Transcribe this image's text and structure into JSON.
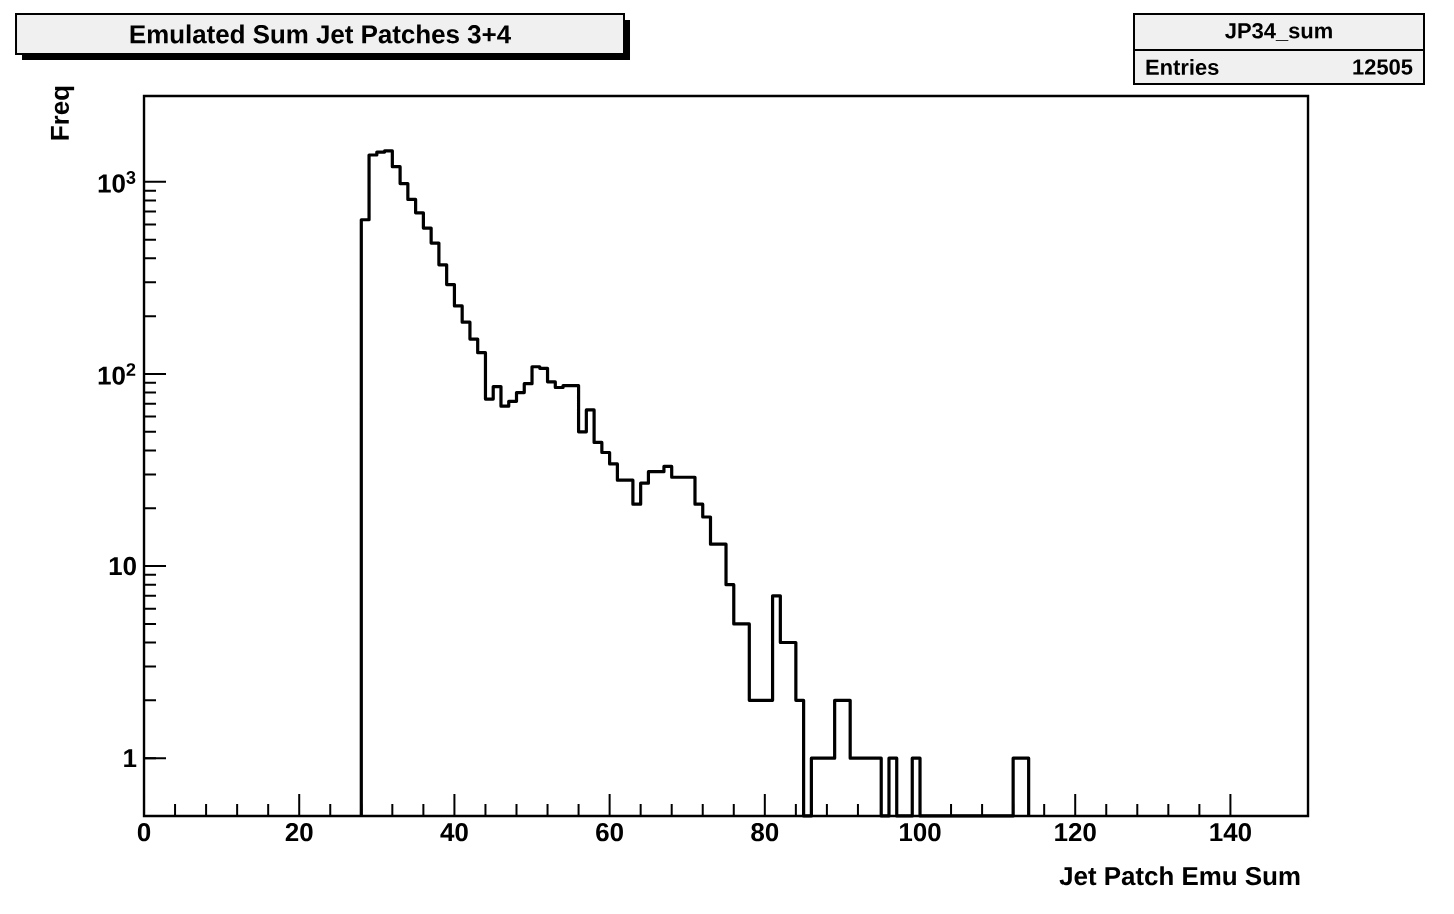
{
  "chart_data": {
    "type": "histogram",
    "title": "Emulated Sum Jet Patches 3+4",
    "xlabel": "Jet Patch Emu Sum",
    "ylabel": "Freq",
    "annotations": [
      "JP34_sum",
      "Entries",
      "12505"
    ],
    "bins": [
      28,
      29,
      30,
      31,
      32,
      33,
      34,
      35,
      36,
      37,
      38,
      39,
      40,
      41,
      42,
      43,
      44,
      45,
      46,
      47,
      48,
      49,
      50,
      51,
      52,
      53,
      54,
      55,
      56,
      57,
      58,
      59,
      60,
      61,
      62,
      63,
      64,
      65,
      66,
      67,
      68,
      69,
      70,
      71,
      72,
      73,
      74,
      75,
      76,
      77,
      78,
      79,
      80,
      81,
      82,
      83,
      84,
      85,
      86,
      87,
      88,
      89,
      90,
      91,
      92,
      93,
      94,
      95,
      96,
      97,
      98,
      99,
      100,
      101,
      102,
      103,
      104,
      105,
      106,
      107,
      108,
      109,
      110,
      111,
      112,
      113,
      114
    ],
    "values": [
      635,
      1380,
      1430,
      1450,
      1200,
      980,
      810,
      690,
      575,
      480,
      370,
      292,
      226,
      186,
      152,
      129,
      74,
      86,
      68,
      72,
      80,
      89,
      109,
      107,
      91,
      85,
      87,
      87,
      50,
      65,
      44,
      39,
      34,
      28,
      28,
      21,
      27,
      31,
      31,
      33,
      29,
      29,
      29,
      21,
      18,
      13,
      13,
      8,
      5,
      5,
      2,
      2,
      2,
      7,
      4,
      4,
      2,
      null,
      1,
      1,
      1,
      2,
      2,
      1,
      1,
      1,
      1,
      null,
      1,
      null,
      null,
      1,
      null,
      null,
      null,
      null,
      null,
      null,
      null,
      null,
      null,
      null,
      null,
      null,
      1,
      1
    ],
    "color": "#000000",
    "log": "y",
    "grid": false,
    "xlim": [
      0,
      150
    ],
    "ylim": [
      0.5,
      2800
    ],
    "xticks": [
      0,
      20,
      40,
      60,
      80,
      100,
      120,
      140
    ],
    "yticks": [
      1,
      10,
      {
        "value": 100,
        "label": "10$^{2}$"
      },
      {
        "value": 1000,
        "label": "10$^{3}$"
      }
    ]
  }
}
